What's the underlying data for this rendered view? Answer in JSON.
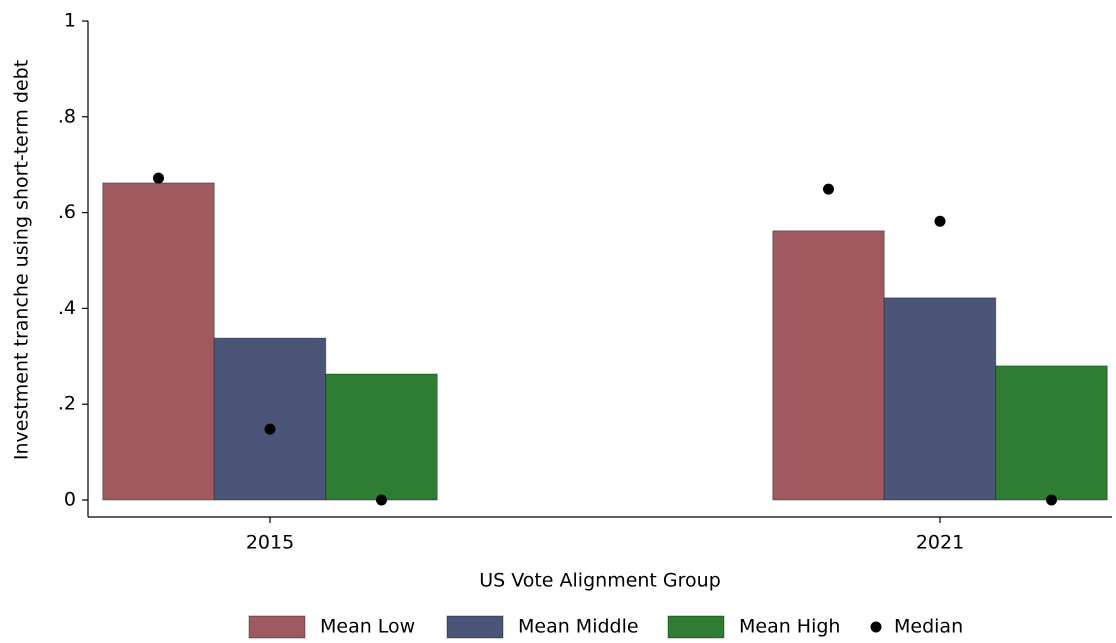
{
  "chart_data": {
    "type": "bar",
    "y_label": "Investment tranche using short-term debt",
    "x_label": "US Vote Alignment Group",
    "categories": [
      "2015",
      "2021"
    ],
    "series": [
      {
        "name": "Mean Low",
        "type": "bar",
        "color": "#a05a5f",
        "values": [
          0.662,
          0.562
        ]
      },
      {
        "name": "Mean Middle",
        "type": "bar",
        "color": "#4a5577",
        "values": [
          0.338,
          0.422
        ]
      },
      {
        "name": "Mean High",
        "type": "bar",
        "color": "#2f7d32",
        "values": [
          0.263,
          0.28
        ]
      },
      {
        "name": "Median",
        "type": "scatter",
        "color": "#000000",
        "values": [
          0.672,
          0.148,
          0,
          0.649,
          0.582,
          0
        ]
      }
    ],
    "ylim": [
      0,
      1
    ],
    "yticks": [
      0,
      {
        "value": 0.2,
        "label": ".2"
      },
      {
        "value": 0.4,
        "label": ".4"
      },
      {
        "value": 0.6,
        "label": ".6"
      },
      {
        "value": 0.8,
        "label": ".8"
      },
      1
    ],
    "legend": "bottom"
  }
}
